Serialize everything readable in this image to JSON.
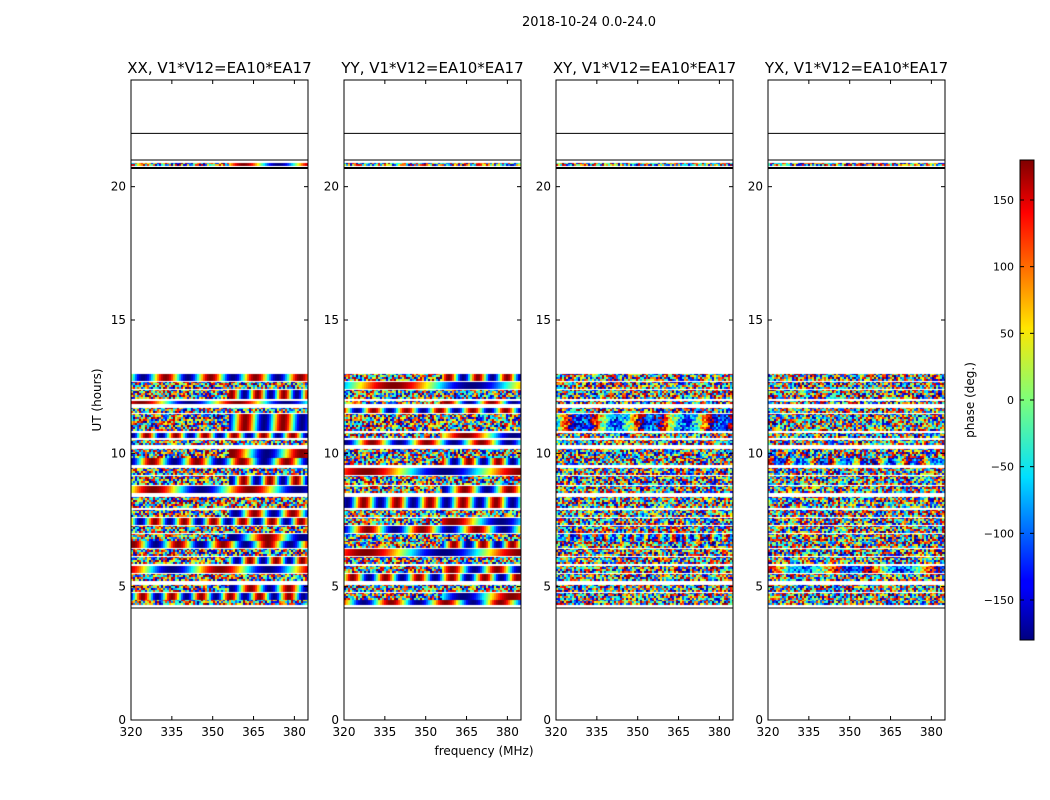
{
  "figure": {
    "suptitle": "2018-10-24 0.0-24.0"
  },
  "chart_data": {
    "type": "heatmap",
    "xlabel": "frequency (MHz)",
    "ylabel": "UT (hours)",
    "xlim": [
      320,
      385
    ],
    "ylim": [
      0,
      24
    ],
    "xticks": [
      320,
      335,
      350,
      365,
      380
    ],
    "yticks": [
      0,
      5,
      10,
      15,
      20
    ],
    "colorbar": {
      "label": "phase (deg.)",
      "range": [
        -180,
        180
      ],
      "ticks": [
        -150,
        -100,
        -50,
        0,
        50,
        100,
        150
      ],
      "colormap": "jet"
    },
    "panels": [
      {
        "title": "XX, V1*V12=EA10*EA17",
        "pattern": "strong"
      },
      {
        "title": "YY, V1*V12=EA10*EA17",
        "pattern": "strong"
      },
      {
        "title": "XY, V1*V12=EA10*EA17",
        "pattern": "noisy"
      },
      {
        "title": "YX, V1*V12=EA10*EA17",
        "pattern": "noisy"
      }
    ],
    "data_bands_ut": [
      [
        4.35,
        4.55
      ],
      [
        4.55,
        4.8
      ],
      [
        4.85,
        5.1
      ],
      [
        5.2,
        5.5
      ],
      [
        5.5,
        5.8
      ],
      [
        5.85,
        6.15
      ],
      [
        6.2,
        6.45
      ],
      [
        6.5,
        6.75
      ],
      [
        6.75,
        7.0
      ],
      [
        7.05,
        7.3
      ],
      [
        7.35,
        7.6
      ],
      [
        7.65,
        7.9
      ],
      [
        7.95,
        8.4
      ],
      [
        8.55,
        8.8
      ],
      [
        8.85,
        9.2
      ],
      [
        9.2,
        9.5
      ],
      [
        9.6,
        9.85
      ],
      [
        9.85,
        10.2
      ],
      [
        10.3,
        10.55
      ],
      [
        10.6,
        10.8
      ],
      [
        10.85,
        11.5
      ],
      [
        11.5,
        11.75
      ],
      [
        11.85,
        12.0
      ],
      [
        12.05,
        12.4
      ],
      [
        12.4,
        12.7
      ],
      [
        12.7,
        13.0
      ],
      [
        20.82,
        20.92
      ]
    ],
    "horizontal_lines_ut": [
      4.2,
      20.7,
      21.0,
      22.0
    ]
  }
}
